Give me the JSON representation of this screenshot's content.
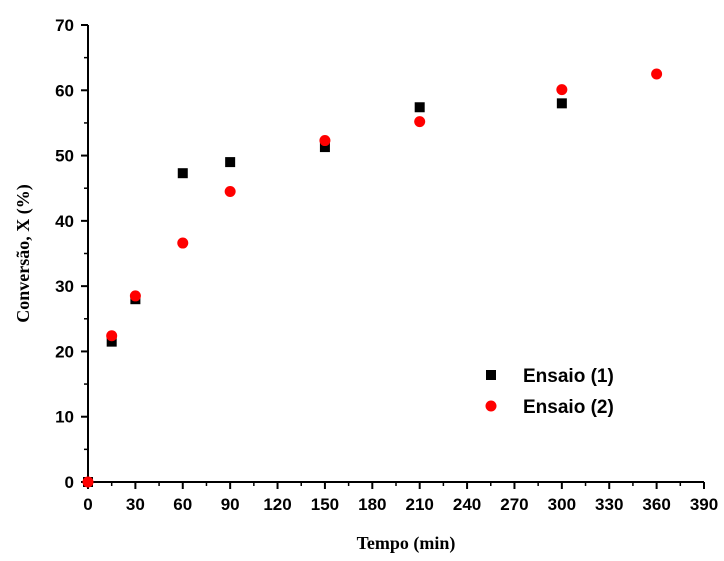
{
  "chart_data": {
    "type": "scatter",
    "title": "",
    "xlabel": "Tempo (min)",
    "ylabel": "Conversão, X (%)",
    "xlim": [
      0,
      390
    ],
    "ylim": [
      0,
      70
    ],
    "xticks": [
      0,
      30,
      60,
      90,
      120,
      150,
      180,
      210,
      240,
      270,
      300,
      330,
      360,
      390
    ],
    "yticks": [
      0,
      10,
      20,
      30,
      40,
      50,
      60,
      70
    ],
    "grid": false,
    "legend_position": "bottom-right",
    "series": [
      {
        "name": "Ensaio (1)",
        "marker": "square",
        "color": "#000000",
        "x": [
          0,
          15,
          30,
          60,
          90,
          150,
          210,
          300
        ],
        "y": [
          0,
          21.5,
          28.0,
          47.3,
          49.0,
          51.3,
          57.4,
          58.0
        ]
      },
      {
        "name": "Ensaio (2)",
        "marker": "circle",
        "color": "#ff0000",
        "x": [
          0,
          15,
          30,
          60,
          90,
          150,
          210,
          300,
          360
        ],
        "y": [
          0,
          22.4,
          28.5,
          36.6,
          44.5,
          52.3,
          55.2,
          60.1,
          62.5
        ]
      }
    ]
  }
}
